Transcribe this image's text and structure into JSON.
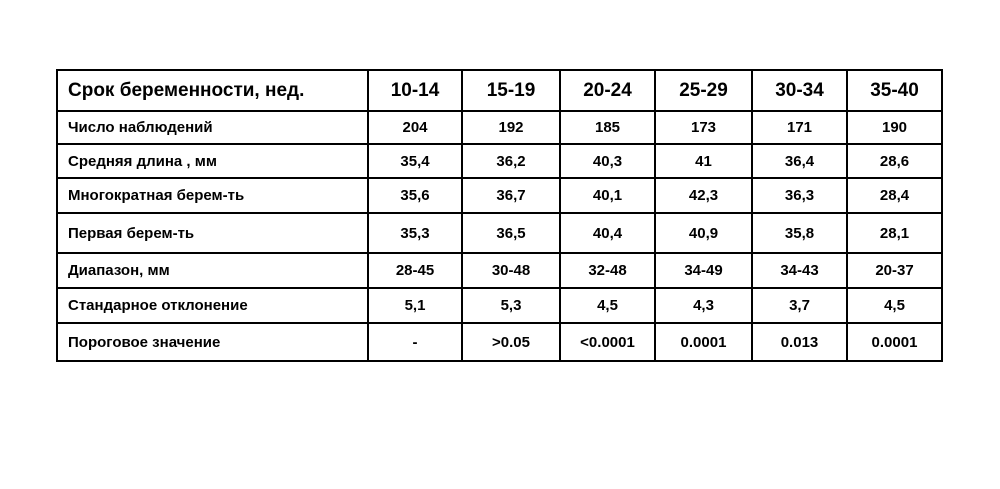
{
  "table": {
    "header": [
      "Срок беременности, нед.",
      "10-14",
      "15-19",
      "20-24",
      "25-29",
      "30-34",
      "35-40"
    ],
    "rows": [
      [
        "Число наблюдений",
        "204",
        "192",
        "185",
        "173",
        "171",
        "190"
      ],
      [
        "Средняя длина , мм",
        "35,4",
        "36,2",
        "40,3",
        "41",
        "36,4",
        "28,6"
      ],
      [
        "Многократная берем-ть",
        "35,6",
        "36,7",
        "40,1",
        "42,3",
        "36,3",
        "28,4"
      ],
      [
        "Первая берем-ть",
        "35,3",
        "36,5",
        "40,4",
        "40,9",
        "35,8",
        "28,1"
      ],
      [
        "Диапазон, мм",
        "28-45",
        "30-48",
        "32-48",
        "34-49",
        "34-43",
        "20-37"
      ],
      [
        "Стандарное отклонение",
        "5,1",
        "5,3",
        "4,5",
        "4,3",
        "3,7",
        "4,5"
      ],
      [
        "Пороговое значение",
        "-",
        ">0.05",
        "<0.0001",
        "0.0001",
        "0.013",
        "0.0001"
      ]
    ]
  }
}
